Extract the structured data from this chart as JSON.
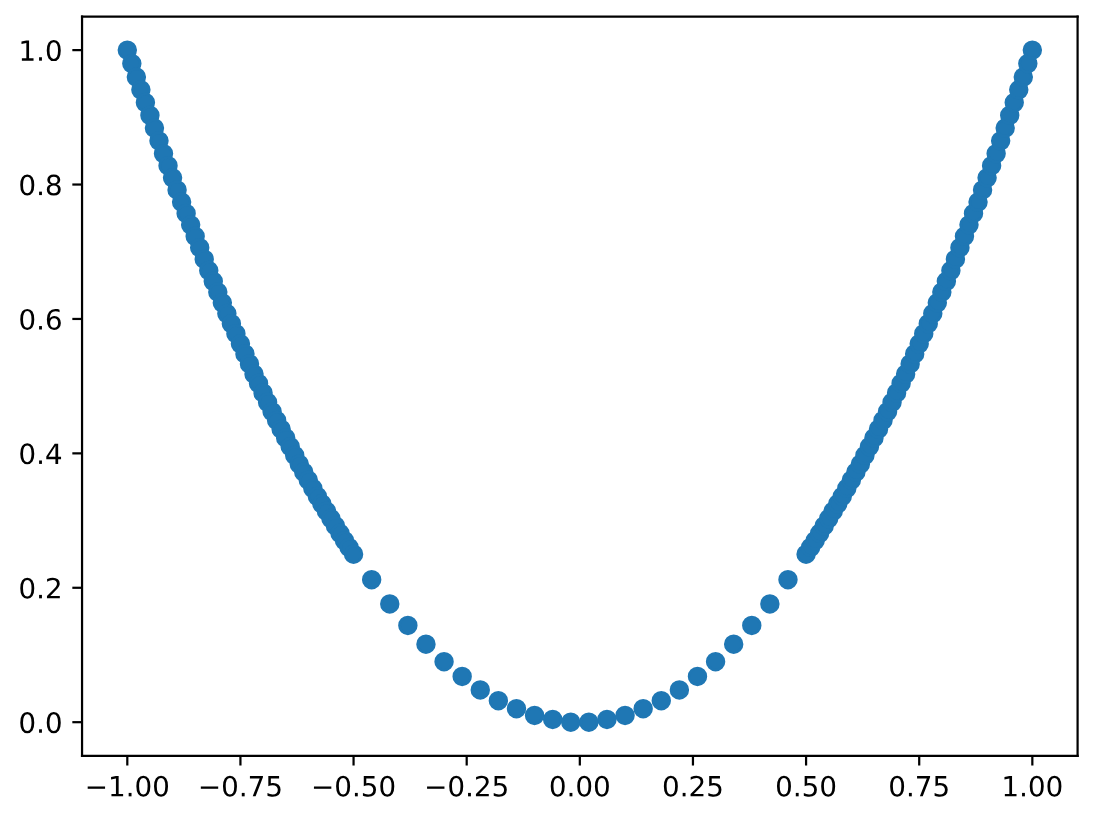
{
  "chart_data": {
    "type": "scatter",
    "x": [
      -1.0,
      -0.99,
      -0.98,
      -0.97,
      -0.96,
      -0.95,
      -0.94,
      -0.93,
      -0.92,
      -0.91,
      -0.9,
      -0.89,
      -0.88,
      -0.87,
      -0.86,
      -0.85,
      -0.84,
      -0.83,
      -0.82,
      -0.81,
      -0.8,
      -0.79,
      -0.78,
      -0.77,
      -0.76,
      -0.75,
      -0.74,
      -0.73,
      -0.72,
      -0.71,
      -0.7,
      -0.69,
      -0.68,
      -0.67,
      -0.66,
      -0.65,
      -0.64,
      -0.63,
      -0.62,
      -0.61,
      -0.6,
      -0.59,
      -0.58,
      -0.57,
      -0.56,
      -0.55,
      -0.54,
      -0.53,
      -0.52,
      -0.51,
      -0.5,
      -0.46,
      -0.42,
      -0.38,
      -0.34,
      -0.3,
      -0.26,
      -0.22,
      -0.18,
      -0.14,
      -0.1,
      -0.06,
      -0.02,
      0.02,
      0.06,
      0.1,
      0.14,
      0.18,
      0.22,
      0.26,
      0.3,
      0.34,
      0.38,
      0.42,
      0.46,
      0.5,
      0.51,
      0.52,
      0.53,
      0.54,
      0.55,
      0.56,
      0.57,
      0.58,
      0.59,
      0.6,
      0.61,
      0.62,
      0.63,
      0.64,
      0.65,
      0.66,
      0.67,
      0.68,
      0.69,
      0.7,
      0.71,
      0.72,
      0.73,
      0.74,
      0.75,
      0.76,
      0.77,
      0.78,
      0.79,
      0.8,
      0.81,
      0.82,
      0.83,
      0.84,
      0.85,
      0.86,
      0.87,
      0.88,
      0.89,
      0.9,
      0.91,
      0.92,
      0.93,
      0.94,
      0.95,
      0.96,
      0.97,
      0.98,
      0.99,
      1.0
    ],
    "series": [
      {
        "color": "#1f77b4",
        "values": [
          1.0,
          0.98,
          0.96,
          0.941,
          0.922,
          0.903,
          0.884,
          0.865,
          0.846,
          0.828,
          0.81,
          0.792,
          0.774,
          0.757,
          0.74,
          0.723,
          0.706,
          0.689,
          0.672,
          0.656,
          0.64,
          0.624,
          0.608,
          0.593,
          0.578,
          0.563,
          0.548,
          0.533,
          0.518,
          0.504,
          0.49,
          0.476,
          0.462,
          0.449,
          0.436,
          0.423,
          0.41,
          0.397,
          0.384,
          0.372,
          0.36,
          0.348,
          0.336,
          0.325,
          0.314,
          0.303,
          0.292,
          0.281,
          0.27,
          0.26,
          0.25,
          0.212,
          0.176,
          0.144,
          0.116,
          0.09,
          0.068,
          0.048,
          0.032,
          0.02,
          0.01,
          0.004,
          0.0,
          0.0,
          0.004,
          0.01,
          0.02,
          0.032,
          0.048,
          0.068,
          0.09,
          0.116,
          0.144,
          0.176,
          0.212,
          0.25,
          0.26,
          0.27,
          0.281,
          0.292,
          0.303,
          0.314,
          0.325,
          0.336,
          0.348,
          0.36,
          0.372,
          0.384,
          0.397,
          0.41,
          0.423,
          0.436,
          0.449,
          0.462,
          0.476,
          0.49,
          0.504,
          0.518,
          0.533,
          0.548,
          0.563,
          0.578,
          0.593,
          0.608,
          0.624,
          0.64,
          0.656,
          0.672,
          0.689,
          0.706,
          0.723,
          0.74,
          0.757,
          0.774,
          0.792,
          0.81,
          0.828,
          0.846,
          0.865,
          0.884,
          0.903,
          0.922,
          0.941,
          0.96,
          0.98,
          1.0
        ]
      }
    ],
    "marker": "circle",
    "xlim": [
      -1.1,
      1.1
    ],
    "ylim": [
      -0.05,
      1.05
    ],
    "xticks": [
      {
        "value": -1.0,
        "label": "−1.00"
      },
      {
        "value": -0.75,
        "label": "−0.75"
      },
      {
        "value": -0.5,
        "label": "−0.50"
      },
      {
        "value": -0.25,
        "label": "−0.25"
      },
      {
        "value": 0,
        "label": "0.00"
      },
      {
        "value": 0.25,
        "label": "0.25"
      },
      {
        "value": 0.5,
        "label": "0.50"
      },
      {
        "value": 0.75,
        "label": "0.75"
      },
      {
        "value": 1.0,
        "label": "1.00"
      }
    ],
    "yticks": [
      {
        "value": 0,
        "label": "0.0"
      },
      {
        "value": 0.2,
        "label": "0.2"
      },
      {
        "value": 0.4,
        "label": "0.4"
      },
      {
        "value": 0.6,
        "label": "0.6"
      },
      {
        "value": 0.8,
        "label": "0.8"
      },
      {
        "value": 1.0,
        "label": "1.0"
      }
    ]
  }
}
